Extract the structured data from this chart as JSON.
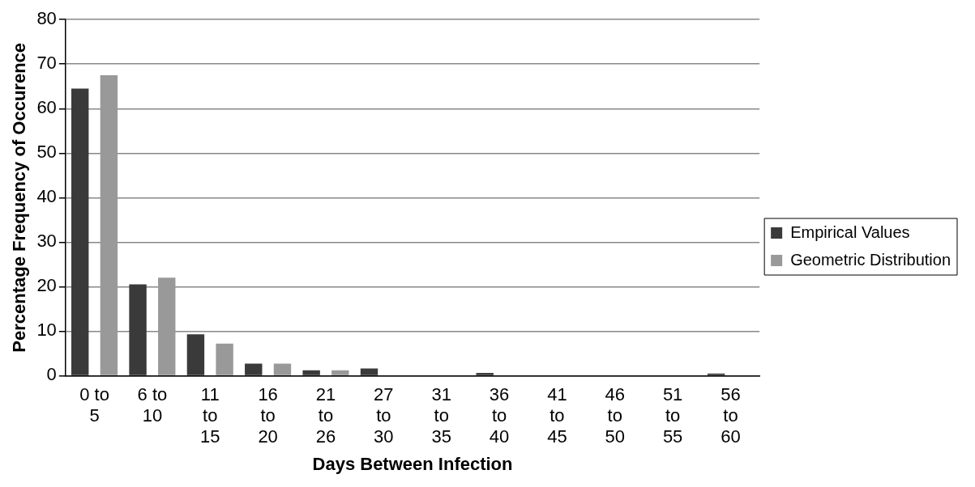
{
  "chart_data": {
    "type": "bar",
    "xlabel": "Days Between Infection",
    "ylabel": "Percentage Frequency of Occurence",
    "categories": [
      "0 to 5",
      "6 to 10",
      "11 to 15",
      "16 to 20",
      "21 to 26",
      "27 to 30",
      "31 to 35",
      "36 to 40",
      "41 to 45",
      "46 to 50",
      "51 to 55",
      "56 to 60"
    ],
    "series": [
      {
        "name": "Empirical Values",
        "color": "#3a3a3a",
        "values": [
          64.5,
          20.5,
          9.3,
          2.7,
          1.2,
          1.6,
          0,
          0.6,
          0,
          0,
          0,
          0.5
        ]
      },
      {
        "name": "Geometric Distribution",
        "color": "#999999",
        "values": [
          67.5,
          22,
          7.2,
          2.7,
          1.2,
          0,
          0,
          0,
          0,
          0,
          0,
          0
        ]
      }
    ],
    "ylim": [
      0,
      80
    ],
    "yticks": [
      0,
      10,
      20,
      30,
      40,
      50,
      60,
      70,
      80
    ],
    "grid": "y",
    "legend": "right"
  }
}
